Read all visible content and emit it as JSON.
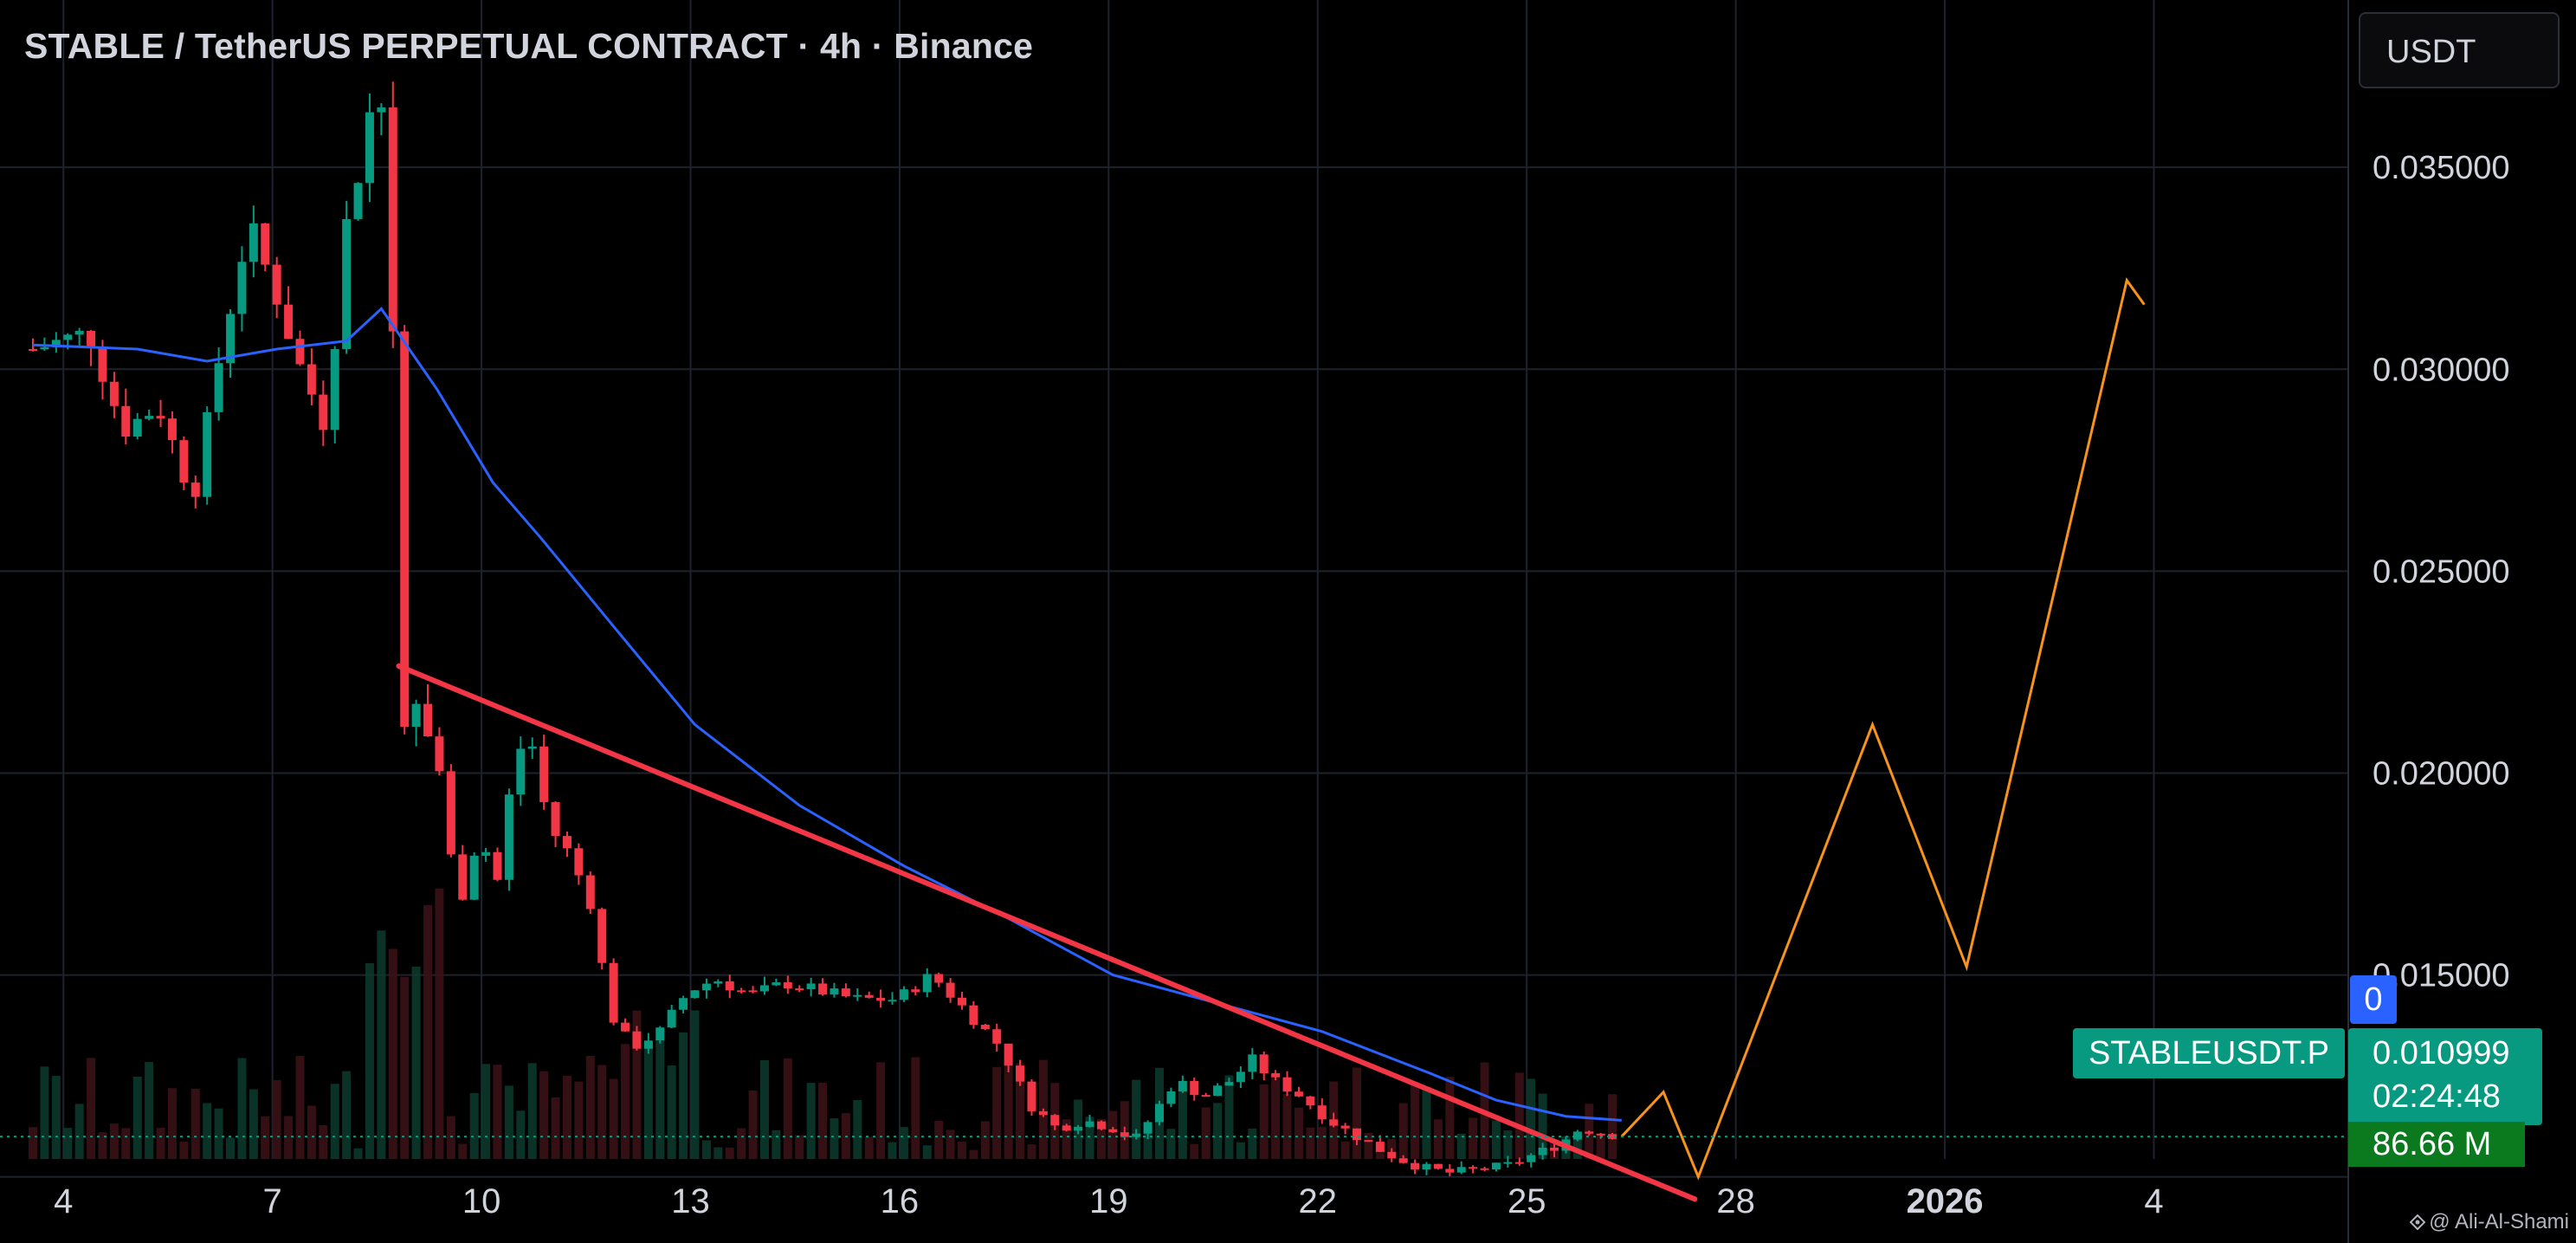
{
  "header": {
    "title": "STABLE / TetherUS PERPETUAL CONTRACT · 4h · Binance",
    "currency_button": "USDT"
  },
  "price_labels": {
    "symbol": "STABLEUSDT.P",
    "last_price": "0.010999",
    "countdown": "02:24:48",
    "indicator_value": "0",
    "volume": "86.66 M"
  },
  "watermark": "@ Ali-Al-Shami",
  "colors": {
    "background": "#000000",
    "up": "#089981",
    "down": "#f23645",
    "moving_average": "#2962ff",
    "trendline": "#f23645",
    "projection": "#f7931a",
    "grid": "#1e222d",
    "axis_text": "#d1d4dc"
  },
  "chart_data": {
    "type": "candlestick",
    "title": "STABLE / TetherUS PERPETUAL CONTRACT · 4h · Binance",
    "interval": "4h",
    "x_axis": {
      "tick_labels": [
        "4",
        "7",
        "10",
        "13",
        "16",
        "19",
        "22",
        "25",
        "28",
        "2026",
        "4"
      ],
      "bold_labels": [
        "2026"
      ],
      "domain_days": [
        3.5,
        37.2
      ]
    },
    "y_axis": {
      "ticks": [
        0.015,
        0.02,
        0.025,
        0.03,
        0.035
      ],
      "tick_labels": [
        "0.015000",
        "0.020000",
        "0.025000",
        "0.030000",
        "0.035000"
      ],
      "ylim": [
        0.0098,
        0.0385
      ],
      "position": "right"
    },
    "grid": true,
    "last_price": 0.010999,
    "close_series": [
      {
        "day": 3.5,
        "close": 0.0305
      },
      {
        "day": 4.3,
        "close": 0.0309
      },
      {
        "day": 4.8,
        "close": 0.0285
      },
      {
        "day": 5.3,
        "close": 0.0291
      },
      {
        "day": 5.8,
        "close": 0.0268
      },
      {
        "day": 6.2,
        "close": 0.0305
      },
      {
        "day": 6.6,
        "close": 0.0336
      },
      {
        "day": 7.0,
        "close": 0.0318
      },
      {
        "day": 7.3,
        "close": 0.0302
      },
      {
        "day": 7.7,
        "close": 0.0286
      },
      {
        "day": 8.0,
        "close": 0.0336
      },
      {
        "day": 8.25,
        "close": 0.0355
      },
      {
        "day": 8.45,
        "close": 0.0375
      },
      {
        "day": 8.65,
        "close": 0.0335
      },
      {
        "day": 8.8,
        "close": 0.0205
      },
      {
        "day": 9.0,
        "close": 0.0215
      },
      {
        "day": 9.3,
        "close": 0.0205
      },
      {
        "day": 9.6,
        "close": 0.0166
      },
      {
        "day": 9.9,
        "close": 0.0185
      },
      {
        "day": 10.2,
        "close": 0.0172
      },
      {
        "day": 10.4,
        "close": 0.0205
      },
      {
        "day": 10.65,
        "close": 0.0208
      },
      {
        "day": 10.9,
        "close": 0.0187
      },
      {
        "day": 11.2,
        "close": 0.018
      },
      {
        "day": 11.5,
        "close": 0.0168
      },
      {
        "day": 11.8,
        "close": 0.014
      },
      {
        "day": 12.1,
        "close": 0.0132
      },
      {
        "day": 12.5,
        "close": 0.0136
      },
      {
        "day": 12.9,
        "close": 0.0146
      },
      {
        "day": 13.3,
        "close": 0.0149
      },
      {
        "day": 13.8,
        "close": 0.0145
      },
      {
        "day": 14.3,
        "close": 0.0148
      },
      {
        "day": 14.8,
        "close": 0.0146
      },
      {
        "day": 15.3,
        "close": 0.0144
      },
      {
        "day": 15.9,
        "close": 0.0144
      },
      {
        "day": 16.4,
        "close": 0.015
      },
      {
        "day": 16.9,
        "close": 0.0141
      },
      {
        "day": 17.4,
        "close": 0.0132
      },
      {
        "day": 17.8,
        "close": 0.0118
      },
      {
        "day": 18.2,
        "close": 0.0112
      },
      {
        "day": 18.6,
        "close": 0.0114
      },
      {
        "day": 19.0,
        "close": 0.0112
      },
      {
        "day": 19.3,
        "close": 0.0109
      },
      {
        "day": 19.6,
        "close": 0.0116
      },
      {
        "day": 19.9,
        "close": 0.0124
      },
      {
        "day": 20.3,
        "close": 0.012
      },
      {
        "day": 20.7,
        "close": 0.0124
      },
      {
        "day": 21.0,
        "close": 0.0129
      },
      {
        "day": 21.3,
        "close": 0.0124
      },
      {
        "day": 21.7,
        "close": 0.012
      },
      {
        "day": 22.1,
        "close": 0.0114
      },
      {
        "day": 22.5,
        "close": 0.011
      },
      {
        "day": 22.9,
        "close": 0.0106
      },
      {
        "day": 23.3,
        "close": 0.0103
      },
      {
        "day": 23.8,
        "close": 0.0101
      },
      {
        "day": 24.3,
        "close": 0.0102
      },
      {
        "day": 24.7,
        "close": 0.0103
      },
      {
        "day": 25.1,
        "close": 0.0106
      },
      {
        "day": 25.4,
        "close": 0.0108
      },
      {
        "day": 25.7,
        "close": 0.0112
      },
      {
        "day": 26.0,
        "close": 0.0111
      },
      {
        "day": 26.3,
        "close": 0.011
      }
    ],
    "moving_average": [
      {
        "day": 3.5,
        "value": 0.0306
      },
      {
        "day": 5.0,
        "value": 0.0305
      },
      {
        "day": 6.0,
        "value": 0.0302
      },
      {
        "day": 7.0,
        "value": 0.0305
      },
      {
        "day": 8.0,
        "value": 0.0307
      },
      {
        "day": 8.5,
        "value": 0.0315
      },
      {
        "day": 9.3,
        "value": 0.0295
      },
      {
        "day": 10.1,
        "value": 0.0272
      },
      {
        "day": 10.8,
        "value": 0.0258
      },
      {
        "day": 11.8,
        "value": 0.0237
      },
      {
        "day": 13.0,
        "value": 0.0212
      },
      {
        "day": 14.5,
        "value": 0.0192
      },
      {
        "day": 16.0,
        "value": 0.0177
      },
      {
        "day": 17.5,
        "value": 0.0164
      },
      {
        "day": 19.0,
        "value": 0.015
      },
      {
        "day": 20.5,
        "value": 0.0143
      },
      {
        "day": 22.0,
        "value": 0.0136
      },
      {
        "day": 23.5,
        "value": 0.0126
      },
      {
        "day": 24.5,
        "value": 0.0119
      },
      {
        "day": 25.5,
        "value": 0.0115
      },
      {
        "day": 26.3,
        "value": 0.0114
      }
    ],
    "trendline": {
      "from": {
        "day": 8.75,
        "value": 0.02265
      },
      "to": {
        "day": 27.35,
        "value": 0.00945
      }
    },
    "projection": [
      {
        "day": 26.3,
        "value": 0.011
      },
      {
        "day": 26.9,
        "value": 0.0121
      },
      {
        "day": 27.4,
        "value": 0.01
      },
      {
        "day": 29.9,
        "value": 0.0212
      },
      {
        "day": 31.25,
        "value": 0.0152
      },
      {
        "day": 33.55,
        "value": 0.0322
      },
      {
        "day": 33.8,
        "value": 0.0316
      }
    ]
  }
}
